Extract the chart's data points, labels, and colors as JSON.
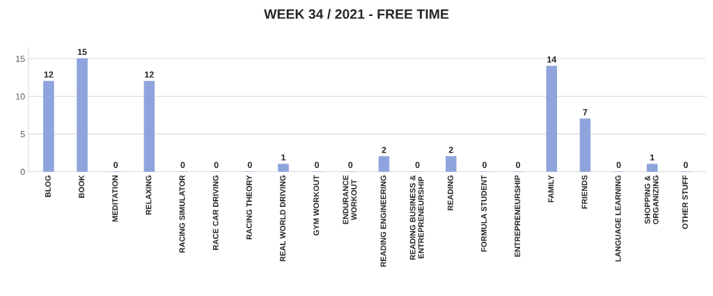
{
  "chart_data": {
    "type": "bar",
    "title": "WEEK 34 / 2021 - FREE TIME",
    "categories": [
      "BLOG",
      "BOOK",
      "MEDITATION",
      "RELAXING",
      "RACING SIMULATOR",
      "RACE CAR DRIVING",
      "RACING THEORY",
      "REAL WORLD DRIVING",
      "GYM WORKOUT",
      "ENDURANCE\nWORKOUT",
      "READING ENGINEERING",
      "READING BUSINESS &\nENTREPRENEURSHIP",
      "READING",
      "FORMULA STUDENT",
      "ENTREPRENEURSHIP",
      "FAMILY",
      "FRIENDS",
      "LANGUAGE LEARNING",
      "SHOPPING &\nORGANIZING",
      "OTHER STUFF"
    ],
    "values": [
      12,
      15,
      0,
      12,
      0,
      0,
      0,
      1,
      0,
      0,
      2,
      0,
      2,
      0,
      0,
      14,
      7,
      0,
      1,
      0
    ],
    "color": "#8fa4dc",
    "ylim": [
      0,
      16.5
    ],
    "yticks": [
      0,
      5,
      10,
      15
    ],
    "grid": "y",
    "data_labels": true
  }
}
